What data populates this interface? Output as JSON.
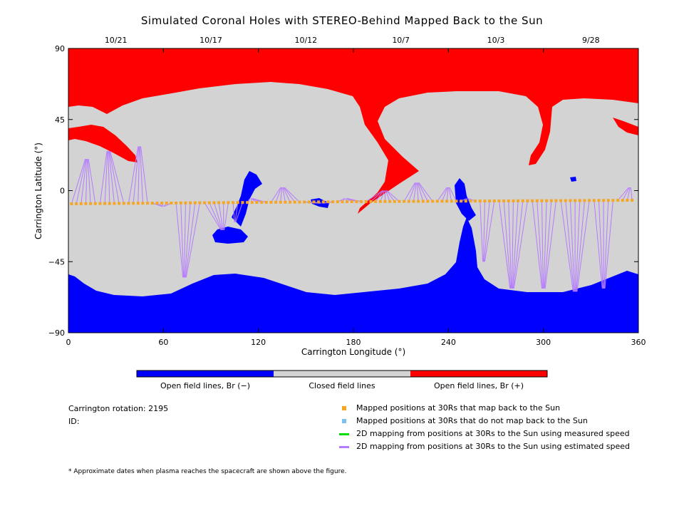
{
  "chart_data": {
    "type": "map",
    "title": "Simulated Coronal Holes with STEREO-Behind Mapped Back to the Sun",
    "xlabel": "Carrington Longitude (°)",
    "ylabel": "Carrington Latitude (°)",
    "xlim": [
      0,
      360
    ],
    "ylim": [
      -90,
      90
    ],
    "x_ticks": [
      "0",
      "60",
      "120",
      "180",
      "240",
      "300",
      "360"
    ],
    "y_ticks": [
      "90",
      "45",
      "0",
      "-45",
      "-90"
    ],
    "top_dates": [
      {
        "label": "10/21",
        "lon": 30
      },
      {
        "label": "10/17",
        "lon": 90
      },
      {
        "label": "10/12",
        "lon": 150
      },
      {
        "label": "10/7",
        "lon": 210
      },
      {
        "label": "10/3",
        "lon": 270
      },
      {
        "label": "9/28",
        "lon": 330
      }
    ],
    "colorbar": [
      {
        "label": "Open field lines, Br (−)",
        "color": "#0000ff"
      },
      {
        "label": "Closed field lines",
        "color": "#d3d3d3"
      },
      {
        "label": "Open field lines, Br (+)",
        "color": "#ff0000"
      }
    ],
    "mapped_latitude_deg": -7
  },
  "info": {
    "rotation": "Carrington rotation: 2195",
    "id": "ID:"
  },
  "legend": [
    {
      "label": "Mapped positions at 30Rs that map back to the Sun",
      "color": "#f5a623",
      "kind": "square"
    },
    {
      "label": "Mapped positions at 30Rs that do not map back to the Sun",
      "color": "#7ec0ee",
      "kind": "square"
    },
    {
      "label": "2D mapping from positions at 30Rs to the Sun using measured speed",
      "color": "#00dd00",
      "kind": "line"
    },
    {
      "label": "2D mapping from positions at 30Rs to the Sun using estimated speed",
      "color": "#b57bff",
      "kind": "line"
    }
  ],
  "footnote": "* Approximate dates when plasma reaches the spacecraft are shown above the figure."
}
